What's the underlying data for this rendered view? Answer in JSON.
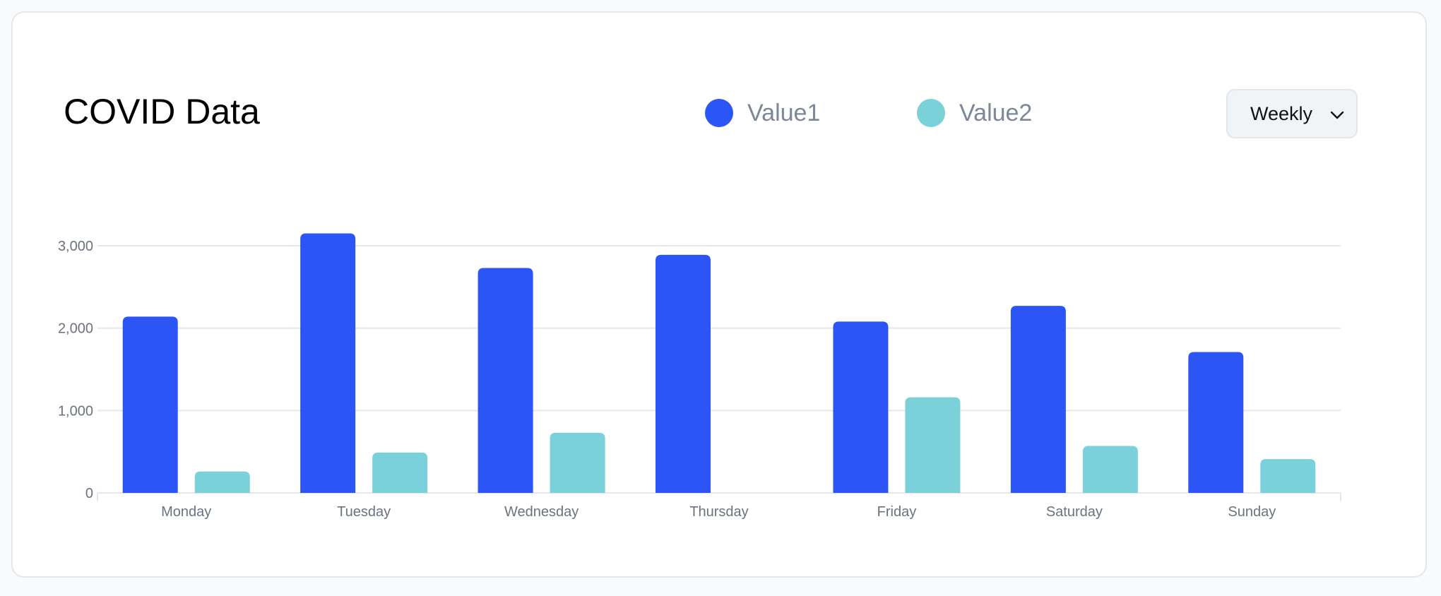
{
  "header": {
    "title": "COVID Data"
  },
  "period_select": {
    "value": "Weekly"
  },
  "colors": {
    "value1": "#2c55f5",
    "value2": "#7bd1da",
    "grid": "#e5e7eb"
  },
  "chart_data": {
    "type": "bar",
    "title": "COVID Data",
    "categories": [
      "Monday",
      "Tuesday",
      "Wednesday",
      "Thursday",
      "Friday",
      "Saturday",
      "Sunday"
    ],
    "series": [
      {
        "name": "Value1",
        "color": "#2c55f5",
        "values": [
          2140,
          3150,
          2730,
          2890,
          2080,
          2270,
          1710
        ]
      },
      {
        "name": "Value2",
        "color": "#7bd1da",
        "values": [
          260,
          490,
          730,
          0,
          1160,
          570,
          410
        ]
      }
    ],
    "yticks": [
      "0",
      "1,000",
      "2,000",
      "3,000"
    ],
    "ylim": [
      0,
      3000
    ],
    "grid": true,
    "legend": "top-center"
  }
}
